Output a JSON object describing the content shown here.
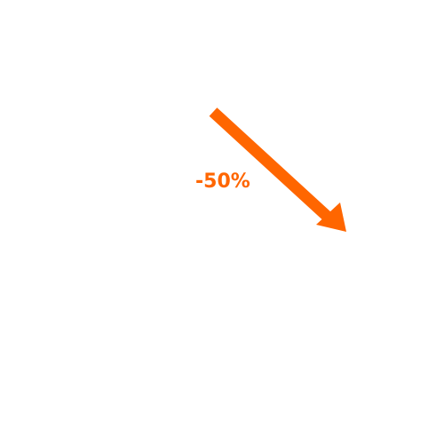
{
  "annotation": {
    "label": "-50%",
    "color": "#ff6600",
    "icon": "arrow-down-right-icon"
  }
}
